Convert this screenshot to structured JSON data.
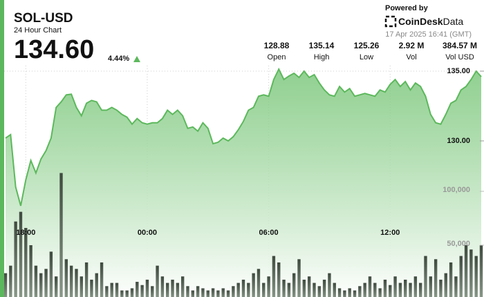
{
  "header": {
    "title": "SOL-USD",
    "subtitle": "24 Hour Chart",
    "price": "134.60",
    "change": "4.44%",
    "powered": "Powered by",
    "brand": "CoinDesk",
    "brand_suffix": "Data",
    "timestamp": "17 Apr 2025 16:41 (GMT)"
  },
  "stats": [
    {
      "value": "128.88",
      "label": "Open"
    },
    {
      "value": "135.14",
      "label": "High"
    },
    {
      "value": "125.26",
      "label": "Low"
    },
    {
      "value": "2.92 M",
      "label": "Vol"
    },
    {
      "value": "384.57 M",
      "label": "Vol USD"
    }
  ],
  "chart_data": {
    "type": "line",
    "categories": [
      null,
      null,
      null,
      null,
      "18:00",
      null,
      null,
      null,
      null,
      null,
      null,
      null,
      null,
      null,
      null,
      null,
      null,
      null,
      null,
      null,
      null,
      null,
      null,
      null,
      null,
      null,
      null,
      null,
      "00:00",
      null,
      null,
      null,
      null,
      null,
      null,
      null,
      null,
      null,
      null,
      null,
      null,
      null,
      null,
      null,
      null,
      null,
      null,
      null,
      null,
      null,
      null,
      null,
      "06:00",
      null,
      null,
      null,
      null,
      null,
      null,
      null,
      null,
      null,
      null,
      null,
      null,
      null,
      null,
      null,
      null,
      null,
      null,
      null,
      null,
      null,
      null,
      null,
      "12:00",
      null,
      null,
      null,
      null,
      null,
      null,
      null,
      null,
      null,
      null,
      null,
      null,
      null,
      null,
      null,
      null,
      null,
      null
    ],
    "price": {
      "color": "#5cb85c",
      "values": [
        130.2,
        130.45,
        126.7,
        125.35,
        127.2,
        128.6,
        127.7,
        128.7,
        129.3,
        130.2,
        132.4,
        132.8,
        133.3,
        133.35,
        132.4,
        131.8,
        132.7,
        132.9,
        132.8,
        132.2,
        132.2,
        132.4,
        132.2,
        131.9,
        131.7,
        131.2,
        131.6,
        131.3,
        131.2,
        131.3,
        131.3,
        131.6,
        132.2,
        131.9,
        132.2,
        131.8,
        130.9,
        131.0,
        130.7,
        131.3,
        130.9,
        129.8,
        129.9,
        130.2,
        130.0,
        130.3,
        130.8,
        131.4,
        132.2,
        132.4,
        133.2,
        133.3,
        133.2,
        134.4,
        135.14,
        134.4,
        134.65,
        134.85,
        134.55,
        135.0,
        134.55,
        134.75,
        134.15,
        133.65,
        133.3,
        133.2,
        133.9,
        133.5,
        133.75,
        133.2,
        133.3,
        133.4,
        133.3,
        133.2,
        133.65,
        133.5,
        134.05,
        134.4,
        133.9,
        134.25,
        133.65,
        134.15,
        133.9,
        133.2,
        131.9,
        131.3,
        131.2,
        131.9,
        132.7,
        132.9,
        133.65,
        133.9,
        134.4,
        135.0,
        134.6
      ],
      "ylim": [
        124.5,
        136
      ],
      "yticks": [
        {
          "value": 135,
          "label": "135.00"
        },
        {
          "value": 130,
          "label": "130.00"
        }
      ]
    },
    "volume": {
      "color": "#4f5e4f",
      "values": [
        24000,
        31000,
        72000,
        81000,
        66000,
        50000,
        31000,
        24000,
        28000,
        44000,
        21000,
        117000,
        37000,
        31000,
        28000,
        21000,
        34000,
        18000,
        24000,
        34000,
        12000,
        15000,
        15000,
        8000,
        8000,
        10000,
        16000,
        13000,
        18000,
        12000,
        31000,
        21000,
        15000,
        18000,
        15000,
        21000,
        12000,
        8000,
        12000,
        10000,
        8000,
        10000,
        8000,
        10000,
        8000,
        12000,
        15000,
        18000,
        15000,
        24000,
        28000,
        15000,
        21000,
        40000,
        34000,
        18000,
        15000,
        24000,
        37000,
        18000,
        21000,
        15000,
        12000,
        18000,
        24000,
        15000,
        10000,
        8000,
        10000,
        8000,
        12000,
        15000,
        21000,
        15000,
        10000,
        18000,
        13000,
        21000,
        15000,
        18000,
        15000,
        21000,
        15000,
        40000,
        21000,
        37000,
        18000,
        24000,
        34000,
        21000,
        40000,
        50000,
        46000,
        40000,
        50000
      ],
      "ylim": [
        0,
        150000
      ],
      "yticks": [
        {
          "value": 100000,
          "label": "100,000"
        },
        {
          "value": 50000,
          "label": "50,000"
        }
      ]
    }
  }
}
